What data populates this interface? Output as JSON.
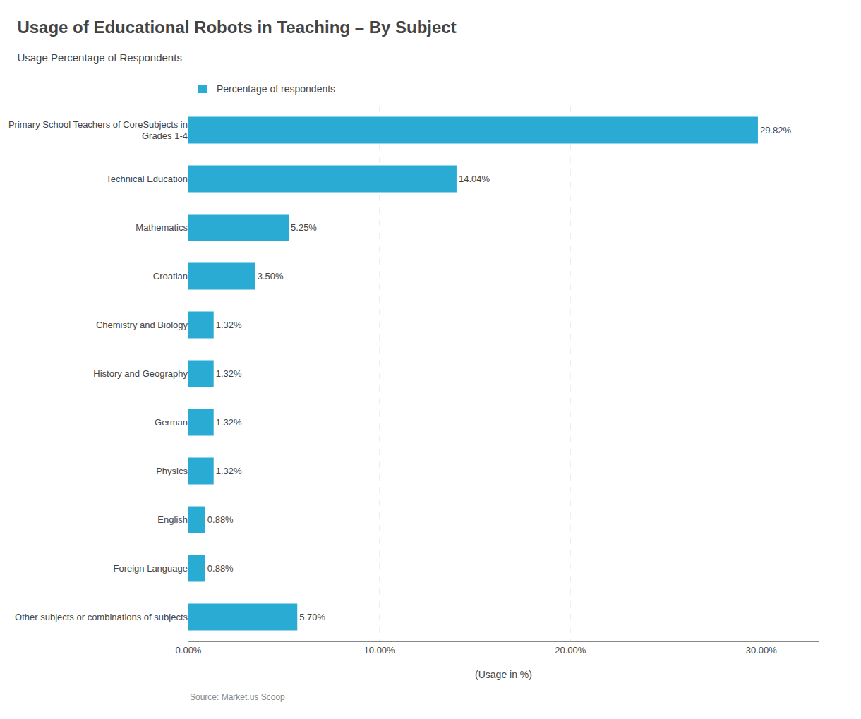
{
  "chart_data": {
    "type": "bar",
    "orientation": "horizontal",
    "title": "Usage of Educational Robots in Teaching – By Subject",
    "subtitle": "Usage Percentage of Respondents",
    "xlabel": "(Usage in %)",
    "annotations": [
      "Source: Market.us Scoop"
    ],
    "categories": [
      "Other subjects or combinations of subjects",
      "Foreign Language",
      "English",
      "Physics",
      "German",
      "History and Geography",
      "Chemistry and Biology",
      "Croatian",
      "Mathematics",
      "Technical Education",
      "Primary School Teachers of CoreSubjects in\nGrades 1-4"
    ],
    "series": [
      {
        "name": "Percentage of respondents",
        "color": "#29ABD4",
        "values": [
          5.7,
          0.88,
          0.88,
          1.32,
          1.32,
          1.32,
          1.32,
          3.5,
          5.25,
          14.04,
          29.82
        ],
        "value_labels": [
          "5.70%",
          "0.88%",
          "0.88%",
          "1.32%",
          "1.32%",
          "1.32%",
          "1.32%",
          "3.50%",
          "5.25%",
          "14.04%",
          "29.82%"
        ]
      }
    ],
    "xlim": [
      0,
      33
    ],
    "xticks": [
      {
        "value": 0,
        "label": "0.00%"
      },
      {
        "value": 10,
        "label": "10.00%"
      },
      {
        "value": 20,
        "label": "20.00%"
      },
      {
        "value": 30,
        "label": "30.00%"
      }
    ],
    "grid": true,
    "legend": "top left",
    "data_labels": true
  }
}
